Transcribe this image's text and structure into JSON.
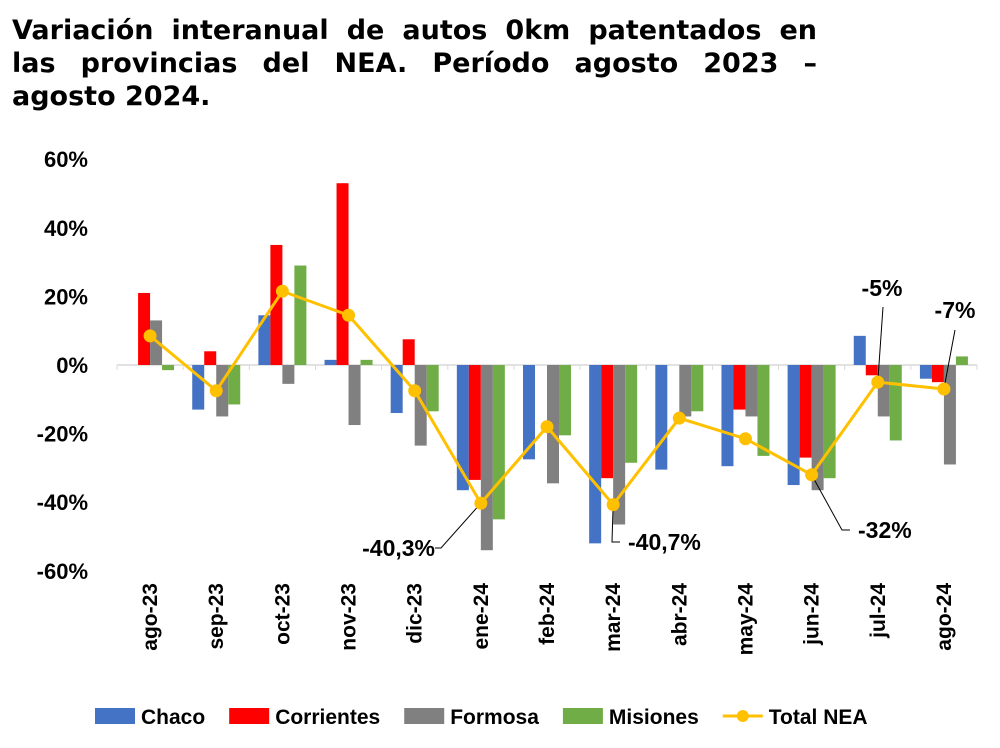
{
  "chart_data": {
    "type": "bar",
    "title": "Variación interanual de autos 0km patentados en las provincias del NEA. Período agosto 2023 – agosto 2024.",
    "xlabel": "",
    "ylabel": "",
    "ylim": [
      -60,
      60
    ],
    "yticks": [
      "60%",
      "40%",
      "20%",
      "0%",
      "-20%",
      "-40%",
      "-60%"
    ],
    "ytick_values": [
      60,
      40,
      20,
      0,
      -20,
      -40,
      -60
    ],
    "categories": [
      "ago-23",
      "sep-23",
      "oct-23",
      "nov-23",
      "dic-23",
      "ene-24",
      "feb-24",
      "mar-24",
      "abr-24",
      "may-24",
      "jun-24",
      "jul-24",
      "ago-24"
    ],
    "series": [
      {
        "name": "Chaco",
        "type": "bar",
        "color": "#4472C4",
        "values": [
          0,
          -13,
          14.5,
          1.5,
          -14,
          -36.5,
          -27.5,
          -52,
          -30.5,
          -29.5,
          -35,
          8.5,
          -4
        ]
      },
      {
        "name": "Corrientes",
        "type": "bar",
        "color": "#FF0000",
        "values": [
          21,
          4,
          35,
          53,
          7.5,
          -33.5,
          0,
          -33,
          0,
          -13,
          -27,
          -3,
          -5
        ]
      },
      {
        "name": "Formosa",
        "type": "bar",
        "color": "#808080",
        "values": [
          13,
          -15,
          -5.5,
          -17.5,
          -23.5,
          -54,
          -34.5,
          -46.5,
          -15,
          -15,
          -36.5,
          -15,
          -29
        ]
      },
      {
        "name": "Misiones",
        "type": "bar",
        "color": "#70AD47",
        "values": [
          -1.5,
          -11.5,
          29,
          1.5,
          -13.5,
          -45,
          -20.5,
          -28.5,
          -13.5,
          -26.5,
          -33,
          -22,
          2.5
        ]
      },
      {
        "name": "Total NEA",
        "type": "line",
        "color": "#FFC000",
        "values": [
          8.5,
          -7.5,
          21.5,
          14.5,
          -7.5,
          -40.3,
          -18,
          -40.7,
          -15.5,
          -21.5,
          -32,
          -5,
          -7
        ]
      }
    ],
    "annotations": [
      {
        "category": "ene-24",
        "text": "-40,3%"
      },
      {
        "category": "mar-24",
        "text": "-40,7%"
      },
      {
        "category": "jun-24",
        "text": "-32%"
      },
      {
        "category": "jul-24",
        "text": "-5%"
      },
      {
        "category": "ago-24",
        "text": "-7%"
      }
    ],
    "legend": "bottom",
    "grid": false
  }
}
